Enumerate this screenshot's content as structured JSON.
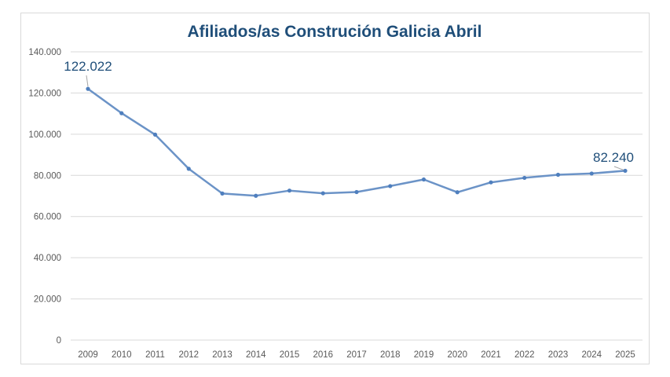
{
  "chart_data": {
    "type": "line",
    "title": "Afiliados/as Construción Galicia Abril",
    "xlabel": "",
    "ylabel": "",
    "categories": [
      "2009",
      "2010",
      "2011",
      "2012",
      "2013",
      "2014",
      "2015",
      "2016",
      "2017",
      "2018",
      "2019",
      "2020",
      "2021",
      "2022",
      "2023",
      "2024",
      "2025"
    ],
    "series": [
      {
        "values": [
          122022,
          110200,
          99800,
          83200,
          71200,
          70100,
          72600,
          71300,
          71900,
          74800,
          78000,
          71800,
          76600,
          78800,
          80300,
          80900,
          82240
        ]
      }
    ],
    "ylim": [
      0,
      140000
    ],
    "yticks": [
      "0",
      "20.000",
      "40.000",
      "60.000",
      "80.000",
      "100.000",
      "120.000",
      "140.000"
    ],
    "yticks_values": [
      0,
      20000,
      40000,
      60000,
      80000,
      100000,
      120000,
      140000
    ],
    "data_labels": [
      {
        "index": 0,
        "text": "122.022"
      },
      {
        "index": 16,
        "text": "82.240"
      }
    ],
    "grid": true,
    "legend": "none",
    "colors": {
      "line": "#6b93c7",
      "marker": "#4f7fbe",
      "title": "#1f4e79",
      "grid": "#d9d9d9",
      "tick": "#595959"
    }
  }
}
